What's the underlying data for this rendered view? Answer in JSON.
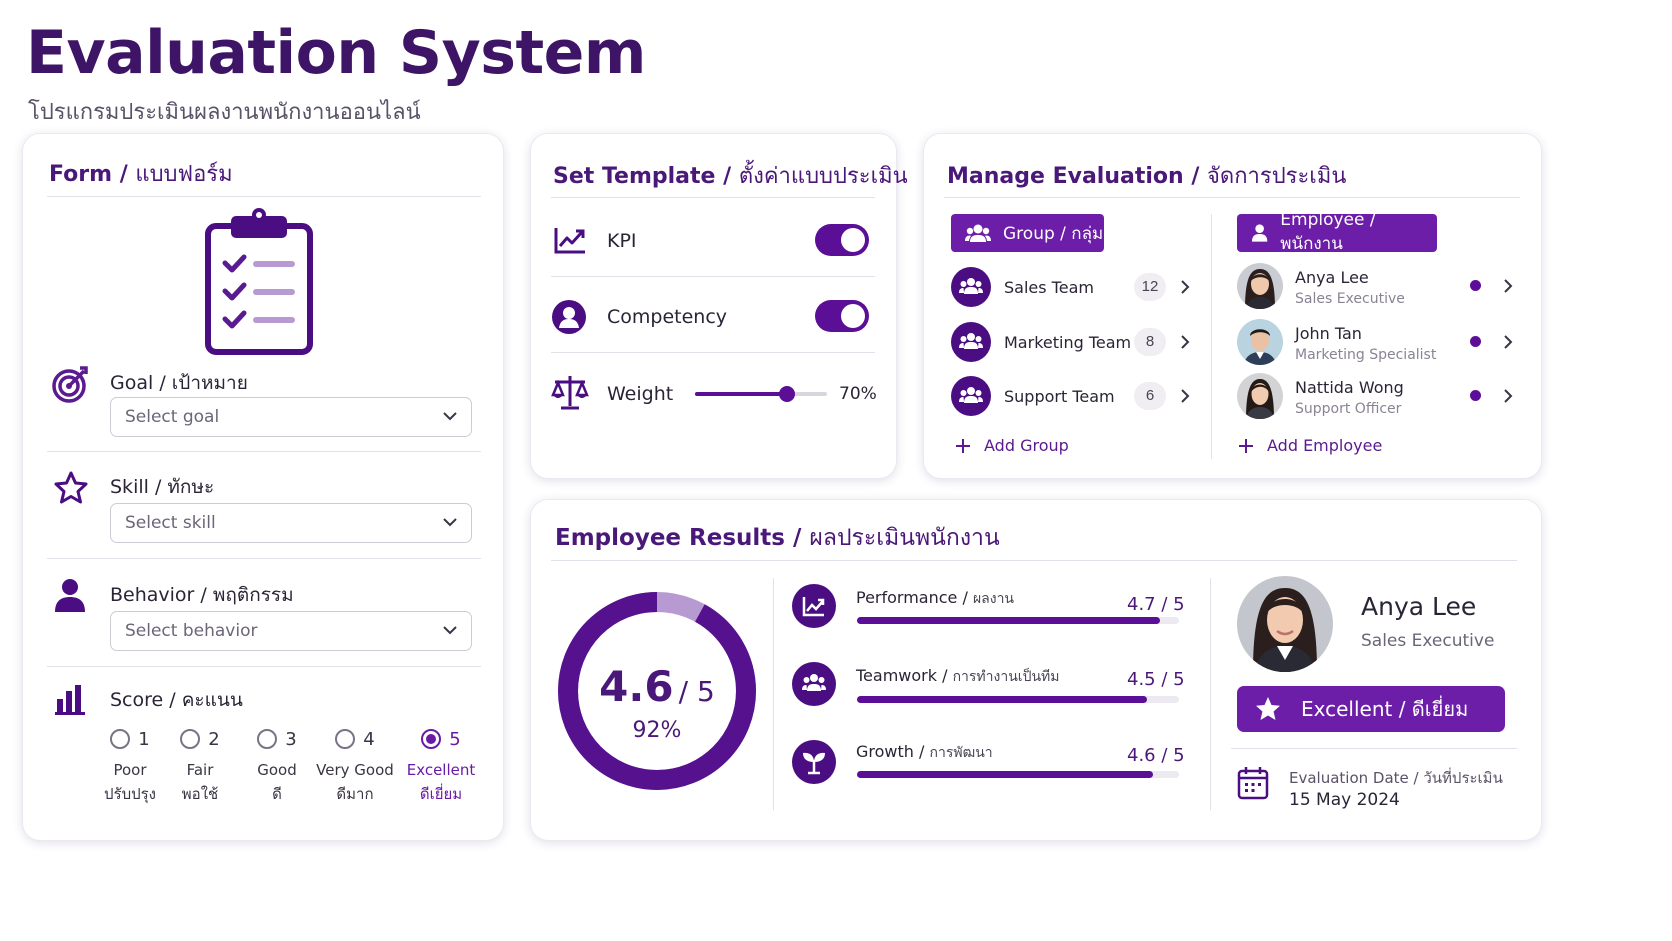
{
  "header": {
    "title": "Evaluation System",
    "subtitle": "โปรแกรมประเมินผลงานพนักงานออนไลน์"
  },
  "form": {
    "title": "Form",
    "title_th": "แบบฟอร์ม",
    "goal": {
      "label": "Goal",
      "label_th": "เป้าหมาย",
      "placeholder": "Select goal"
    },
    "skill": {
      "label": "Skill",
      "label_th": "ทักษะ",
      "placeholder": "Select skill"
    },
    "behavior": {
      "label": "Behavior",
      "label_th": "พฤติกรรม",
      "placeholder": "Select behavior"
    },
    "score": {
      "label": "Score",
      "label_th": "คะแนน",
      "selected": "5",
      "options": [
        {
          "value": "1",
          "en": "Poor",
          "th": "ปรับปรุง"
        },
        {
          "value": "2",
          "en": "Fair",
          "th": "พอใช้"
        },
        {
          "value": "3",
          "en": "Good",
          "th": "ดี"
        },
        {
          "value": "4",
          "en": "Very Good",
          "th": "ดีมาก"
        },
        {
          "value": "5",
          "en": "Excellent",
          "th": "ดีเยี่ยม"
        }
      ]
    }
  },
  "template": {
    "title": "Set Template",
    "title_th": "ตั้งค่าแบบประเมิน",
    "kpi": {
      "label": "KPI",
      "enabled": true
    },
    "competency": {
      "label": "Competency",
      "enabled": true
    },
    "weight": {
      "label": "Weight",
      "value": 0.7,
      "display": "70%"
    }
  },
  "manage": {
    "title": "Manage Evaluation",
    "title_th": "จัดการประเมิน",
    "group_tab": "Group / กลุ่ม",
    "employee_tab": "Employee / พนักงาน",
    "groups": [
      {
        "name": "Sales Team",
        "count": "12"
      },
      {
        "name": "Marketing Team",
        "count": "8"
      },
      {
        "name": "Support Team",
        "count": "6"
      }
    ],
    "employees": [
      {
        "name": "Anya Lee",
        "role": "Sales Executive"
      },
      {
        "name": "John Tan",
        "role": "Marketing Specialist"
      },
      {
        "name": "Nattida Wong",
        "role": "Support Officer"
      }
    ],
    "add_group": "Add Group",
    "add_employee": "Add Employee"
  },
  "results": {
    "title": "Employee Results",
    "title_th": "ผลประเมินพนักงาน",
    "overall": {
      "score": "4.6",
      "max": "/ 5",
      "percent": "92%",
      "fraction": 0.92
    },
    "metrics": [
      {
        "en": "Performance",
        "th": "ผลงาน",
        "value": "4.7 / 5",
        "fraction": 0.94
      },
      {
        "en": "Teamwork",
        "th": "การทำงานเป็นทีม",
        "value": "4.5 / 5",
        "fraction": 0.9
      },
      {
        "en": "Growth",
        "th": "การพัฒนา",
        "value": "4.6 / 5",
        "fraction": 0.92
      }
    ],
    "employee": {
      "name": "Anya Lee",
      "role": "Sales Executive"
    },
    "rating": "Excellent / ดีเยี่ยม",
    "date_label": "Evaluation Date / วันที่ประเมิน",
    "date": "15 May 2024"
  },
  "colors": {
    "primary": "#4a1878",
    "accent": "#6d1ea8",
    "ring_light": "#b79ad2"
  }
}
